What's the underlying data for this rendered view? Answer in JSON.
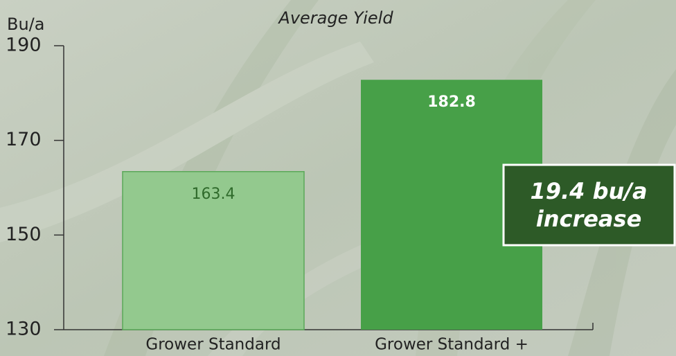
{
  "chart_data": {
    "type": "bar",
    "title": "Average Yield",
    "y_label": "Bu/a",
    "categories": [
      "Grower Standard",
      "Grower Standard +"
    ],
    "values": [
      163.4,
      182.8
    ],
    "colors": [
      "#93c98e",
      "#47a048"
    ],
    "ylim": [
      130,
      190
    ],
    "yticks": [
      130,
      150,
      170,
      190
    ],
    "annotation": [
      "19.4 bu/a",
      "increase"
    ]
  }
}
